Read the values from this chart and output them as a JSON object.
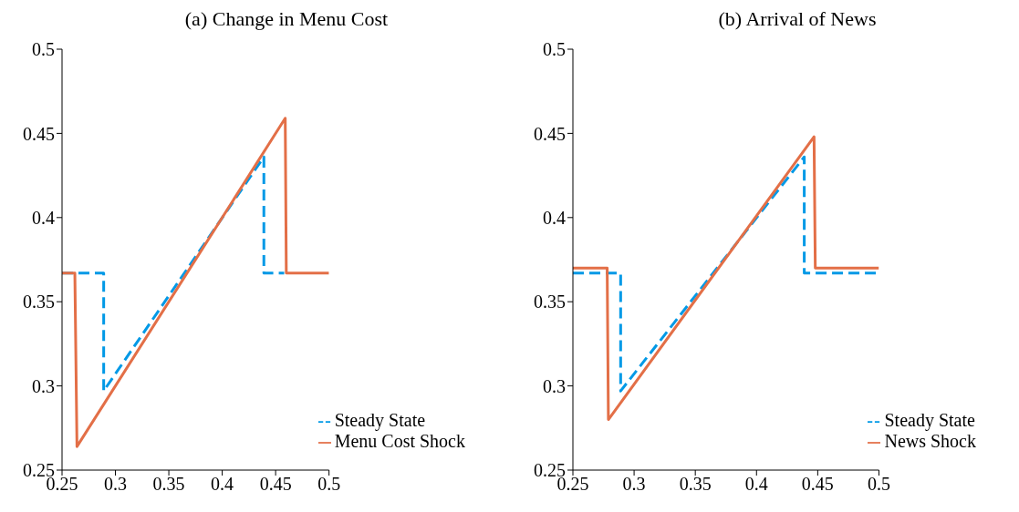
{
  "chart_data": [
    {
      "type": "line",
      "title": "(a) Change in Menu Cost",
      "xlim": [
        0.25,
        0.5
      ],
      "xticks": [
        0.25,
        0.3,
        0.35,
        0.4,
        0.45,
        0.5
      ],
      "ylim": [
        0.25,
        0.5
      ],
      "yticks": [
        0.25,
        0.3,
        0.35,
        0.4,
        0.45,
        0.5
      ],
      "grid": false,
      "legend": "bottom right",
      "marker": "none",
      "series": [
        {
          "name": "Steady State",
          "color": "#0099e6",
          "line_style": "dashed",
          "x": [
            0.25,
            0.289,
            0.289,
            0.439,
            0.439,
            0.458
          ],
          "values": [
            0.367,
            0.367,
            0.297,
            0.436,
            0.367,
            0.367
          ]
        },
        {
          "name": "Menu Cost Shock",
          "color": "#e36f47",
          "line_style": "solid",
          "x": [
            0.25,
            0.262,
            0.264,
            0.459,
            0.46,
            0.5
          ],
          "values": [
            0.367,
            0.367,
            0.264,
            0.459,
            0.367,
            0.367
          ]
        }
      ]
    },
    {
      "type": "line",
      "title": "(b) Arrival of News",
      "xlim": [
        0.25,
        0.5
      ],
      "xticks": [
        0.25,
        0.3,
        0.35,
        0.4,
        0.45,
        0.5
      ],
      "ylim": [
        0.25,
        0.5
      ],
      "yticks": [
        0.25,
        0.3,
        0.35,
        0.4,
        0.45,
        0.5
      ],
      "grid": false,
      "legend": "bottom right",
      "marker": "none",
      "series": [
        {
          "name": "Steady State",
          "color": "#0099e6",
          "line_style": "dashed",
          "x": [
            0.25,
            0.289,
            0.289,
            0.439,
            0.439,
            0.5
          ],
          "values": [
            0.367,
            0.367,
            0.297,
            0.436,
            0.367,
            0.367
          ]
        },
        {
          "name": "News Shock",
          "color": "#e36f47",
          "line_style": "solid",
          "x": [
            0.25,
            0.278,
            0.279,
            0.447,
            0.448,
            0.5
          ],
          "values": [
            0.37,
            0.37,
            0.28,
            0.448,
            0.37,
            0.37
          ]
        }
      ]
    }
  ]
}
